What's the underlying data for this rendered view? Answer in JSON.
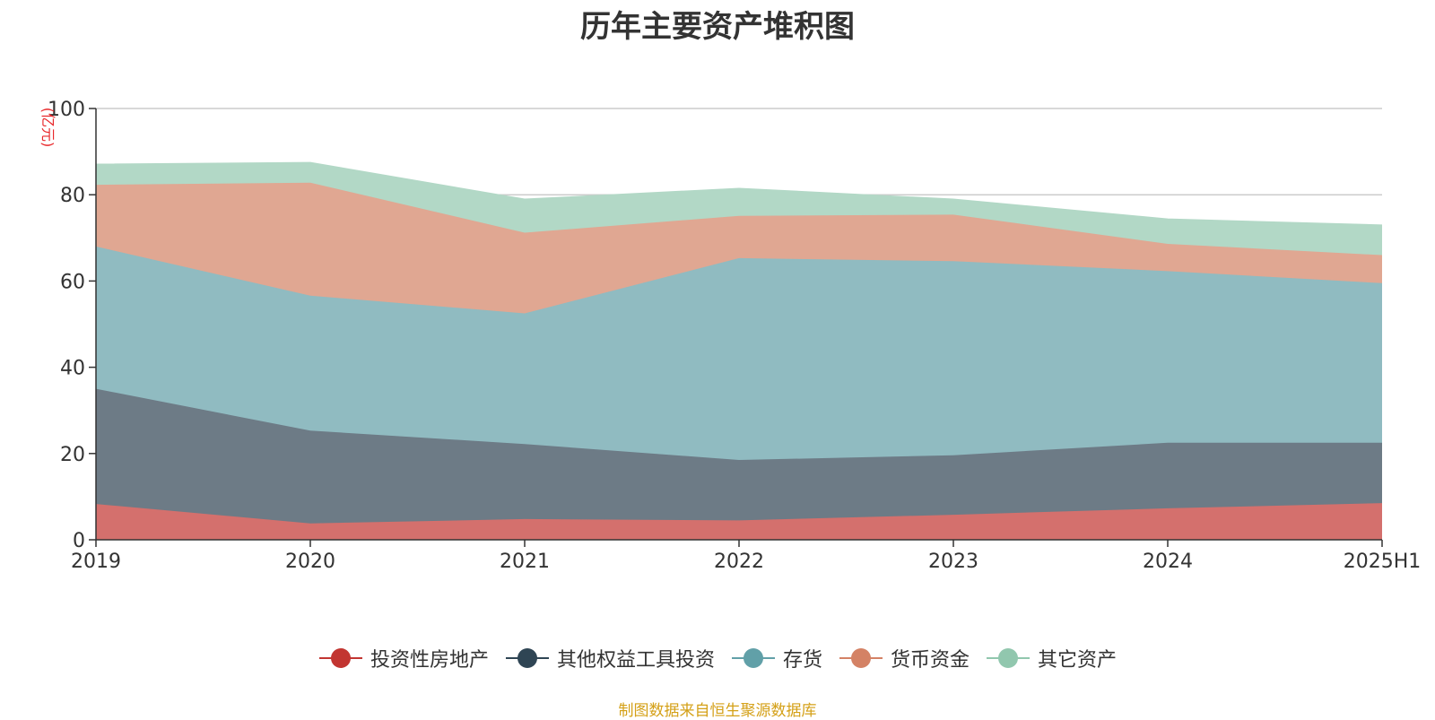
{
  "chart_data": {
    "type": "area",
    "stacked": true,
    "title": "历年主要资产堆积图",
    "ylabel": "(亿元)",
    "xlabel": "",
    "categories": [
      "2019",
      "2020",
      "2021",
      "2022",
      "2023",
      "2024",
      "2025H1"
    ],
    "ylim": [
      0,
      100
    ],
    "yticks": [
      0,
      20,
      40,
      60,
      80,
      100
    ],
    "grid": true,
    "legend_position": "bottom-center",
    "series": [
      {
        "name": "投资性房地产",
        "values": [
          8.3,
          3.8,
          4.8,
          4.5,
          5.8,
          7.3,
          8.5
        ],
        "color": "#c23531",
        "area_color": "#d4706d"
      },
      {
        "name": "其他权益工具投资",
        "values": [
          26.7,
          21.5,
          17.4,
          14.0,
          13.8,
          15.2,
          14.0
        ],
        "color": "#2f4554",
        "area_color": "#6d7b86"
      },
      {
        "name": "存货",
        "values": [
          33.0,
          31.3,
          30.3,
          46.8,
          45.0,
          39.8,
          37.0
        ],
        "color": "#61a0a8",
        "area_color": "#90bbc1"
      },
      {
        "name": "货币资金",
        "values": [
          14.3,
          26.2,
          18.7,
          9.8,
          10.8,
          6.3,
          6.5
        ],
        "color": "#d48265",
        "area_color": "#e0a792"
      },
      {
        "name": "其它资产",
        "values": [
          4.8,
          4.7,
          7.8,
          6.4,
          3.6,
          5.8,
          7.0
        ],
        "color": "#91c7ae",
        "area_color": "#b2d8c6"
      }
    ]
  },
  "source_note": "制图数据来自恒生聚源数据库"
}
